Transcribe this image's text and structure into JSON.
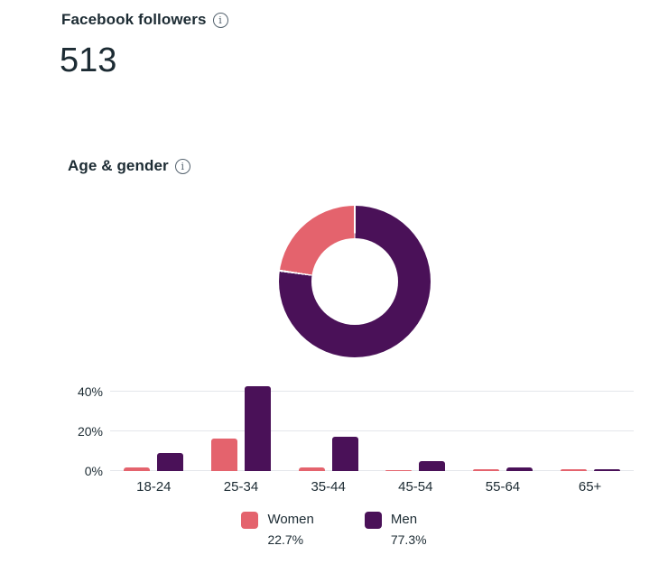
{
  "colors": {
    "women": "#E4636D",
    "men": "#4A1158",
    "grid": "#E4E6EB",
    "text": "#1C2B33",
    "icon": "#54626E",
    "background": "#FFFFFF"
  },
  "header": {
    "title": "Facebook followers",
    "info_icon": "i",
    "count": "513"
  },
  "section": {
    "title": "Age & gender",
    "info_icon": "i"
  },
  "chart_data": [
    {
      "type": "pie",
      "title": "Gender split donut",
      "hole_ratio": 0.57,
      "start": "top",
      "direction": "clockwise",
      "slices": [
        {
          "label": "Men",
          "value": 77.3,
          "color": "#4A1158"
        },
        {
          "label": "Women",
          "value": 22.7,
          "color": "#E4636D"
        }
      ]
    },
    {
      "type": "bar",
      "title": "Age & gender distribution",
      "categories": [
        "18-24",
        "25-34",
        "35-44",
        "45-54",
        "55-64",
        "65+"
      ],
      "series": [
        {
          "name": "Women",
          "color": "#E4636D",
          "values": [
            2.0,
            16.4,
            1.9,
            0.7,
            0.9,
            0.8
          ]
        },
        {
          "name": "Men",
          "color": "#4A1158",
          "values": [
            9.0,
            42.8,
            17.3,
            5.2,
            2.0,
            1.0
          ]
        }
      ],
      "yticks": [
        "0%",
        "20%",
        "40%"
      ],
      "ylim": [
        0,
        45
      ],
      "grid": true,
      "legend_position": "bottom"
    }
  ],
  "legend": {
    "items": [
      {
        "label": "Women",
        "pct": "22.7%",
        "color": "#E4636D"
      },
      {
        "label": "Men",
        "pct": "77.3%",
        "color": "#4A1158"
      }
    ]
  }
}
